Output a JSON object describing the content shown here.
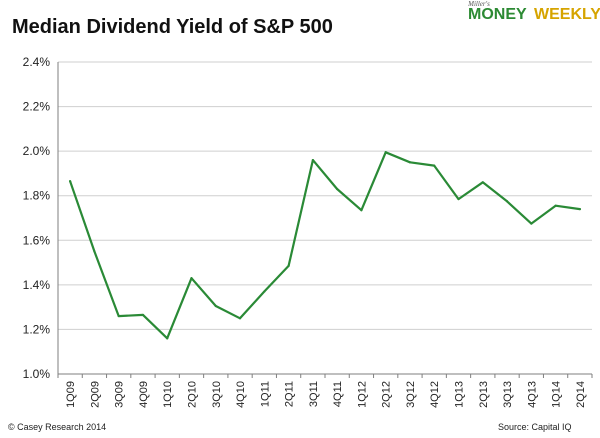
{
  "page": {
    "title": "Median Dividend Yield of S&P 500",
    "brand": {
      "top": "Miller's",
      "money": "MONEY",
      "weekly": "WEEKLY"
    },
    "copyright": "© Casey Research 2014",
    "source": "Source: Capital IQ"
  },
  "colors": {
    "line": "#2a8a36",
    "grid": "#cfcfcf",
    "axis": "#7f7f7f"
  },
  "chart_data": {
    "type": "line",
    "title": "Median Dividend Yield of S&P 500",
    "xlabel": "",
    "ylabel": "",
    "ylim": [
      0.01,
      0.024
    ],
    "y_ticks": [
      0.01,
      0.012,
      0.014,
      0.016,
      0.018,
      0.02,
      0.022,
      0.024
    ],
    "y_tick_labels": [
      "1.0%",
      "1.2%",
      "1.4%",
      "1.6%",
      "1.8%",
      "2.0%",
      "2.2%",
      "2.4%"
    ],
    "grid": true,
    "legend": "none",
    "categories": [
      "1Q09",
      "2Q09",
      "3Q09",
      "4Q09",
      "1Q10",
      "2Q10",
      "3Q10",
      "4Q10",
      "1Q11",
      "2Q11",
      "3Q11",
      "4Q11",
      "1Q12",
      "2Q12",
      "3Q12",
      "4Q12",
      "1Q13",
      "2Q13",
      "3Q13",
      "4Q13",
      "1Q14",
      "2Q14"
    ],
    "x_tick_labels": [
      "1Q09",
      "2Q09",
      "3Q09",
      "4Q09",
      "1Q10",
      "2Q10",
      "3Q10",
      "4Q10",
      "1Q11",
      "2Q11",
      "3Q11",
      "4Q11",
      "1Q12",
      "2Q12",
      "3Q12",
      "4Q12",
      "1Q13",
      "2Q13",
      "3Q13",
      "4Q13",
      "1Q14",
      "2Q14"
    ],
    "series": [
      {
        "name": "Median Dividend Yield",
        "values": [
          0.01865,
          0.0155,
          0.0126,
          0.01265,
          0.0116,
          0.0143,
          0.01305,
          0.0125,
          0.0137,
          0.01485,
          0.0196,
          0.0183,
          0.01735,
          0.01995,
          0.0195,
          0.01935,
          0.01785,
          0.0186,
          0.01775,
          0.01675,
          0.01755,
          0.0174
        ]
      }
    ]
  }
}
